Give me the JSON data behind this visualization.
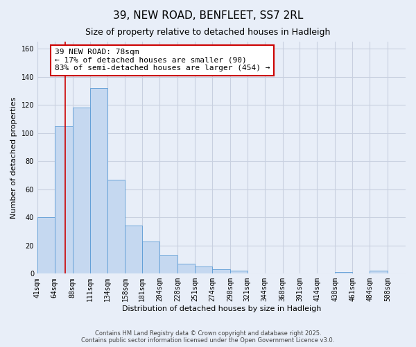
{
  "title": "39, NEW ROAD, BENFLEET, SS7 2RL",
  "subtitle": "Size of property relative to detached houses in Hadleigh",
  "xlabel": "Distribution of detached houses by size in Hadleigh",
  "ylabel": "Number of detached properties",
  "bar_values": [
    40,
    105,
    118,
    132,
    67,
    34,
    23,
    13,
    7,
    5,
    3,
    2,
    0,
    0,
    0,
    0,
    0,
    1,
    0,
    2
  ],
  "bar_labels": [
    "41sqm",
    "64sqm",
    "88sqm",
    "111sqm",
    "134sqm",
    "158sqm",
    "181sqm",
    "204sqm",
    "228sqm",
    "251sqm",
    "274sqm",
    "298sqm",
    "321sqm",
    "344sqm",
    "368sqm",
    "391sqm",
    "414sqm",
    "438sqm",
    "461sqm",
    "484sqm",
    "508sqm"
  ],
  "bin_edges": [
    41,
    64,
    88,
    111,
    134,
    158,
    181,
    204,
    228,
    251,
    274,
    298,
    321,
    344,
    368,
    391,
    414,
    438,
    461,
    484,
    508
  ],
  "bar_color": "#c5d8f0",
  "bar_edge_color": "#5b9bd5",
  "property_line_x": 78,
  "vline_color": "#cc0000",
  "ylim": [
    0,
    165
  ],
  "yticks": [
    0,
    20,
    40,
    60,
    80,
    100,
    120,
    140,
    160
  ],
  "annotation_text": "39 NEW ROAD: 78sqm\n← 17% of detached houses are smaller (90)\n83% of semi-detached houses are larger (454) →",
  "annotation_box_color": "#ffffff",
  "annotation_box_edge": "#cc0000",
  "footer_line1": "Contains HM Land Registry data © Crown copyright and database right 2025.",
  "footer_line2": "Contains public sector information licensed under the Open Government Licence v3.0.",
  "background_color": "#e8eef8",
  "grid_color": "#c8d0e0",
  "title_fontsize": 11,
  "subtitle_fontsize": 9,
  "ylabel_fontsize": 8,
  "xlabel_fontsize": 8,
  "tick_fontsize": 7,
  "annotation_fontsize": 8,
  "footer_fontsize": 6
}
